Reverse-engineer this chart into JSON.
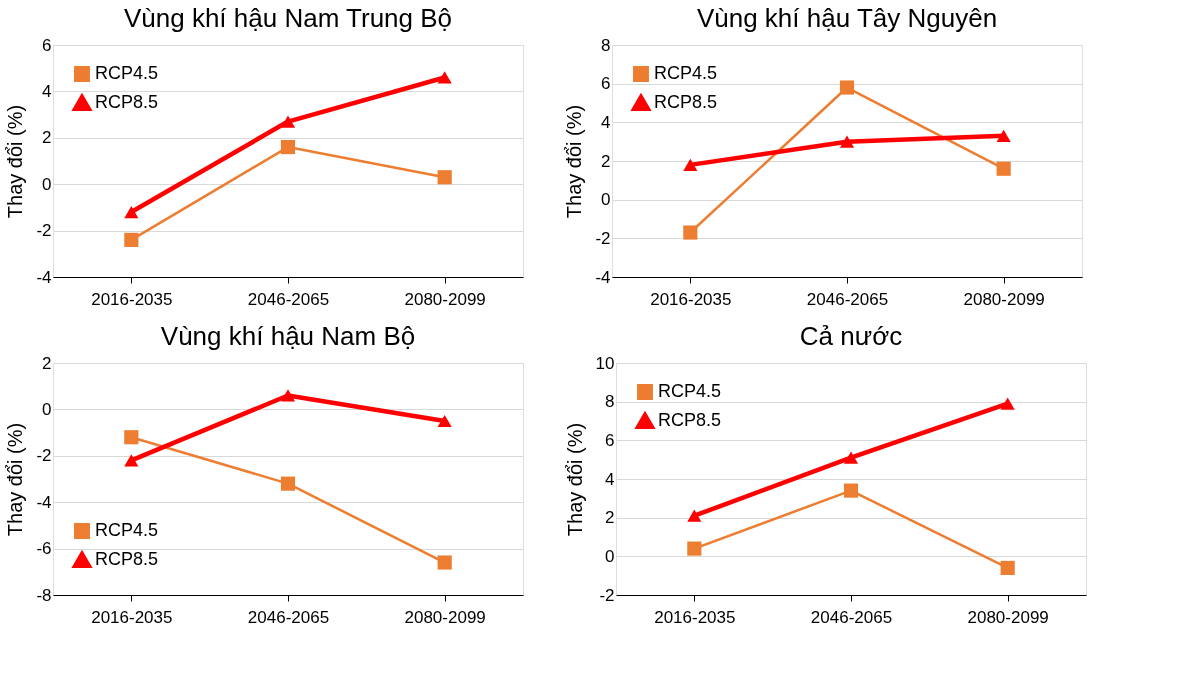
{
  "chart_data": [
    {
      "type": "line",
      "title": "Vùng khí hậu Nam Trung Bộ",
      "ylabel": "Thay đổi (%)",
      "categories": [
        "2016-2035",
        "2046-2065",
        "2080-2099"
      ],
      "series": [
        {
          "name": "RCP4.5",
          "color": "#ed7d31",
          "marker": "square",
          "values": [
            -2.4,
            1.6,
            0.3
          ]
        },
        {
          "name": "RCP8.5",
          "color": "#ff0000",
          "marker": "triangle",
          "values": [
            -1.2,
            2.7,
            4.6
          ]
        }
      ],
      "ylim": [
        -4,
        6
      ],
      "yticks": [
        -4,
        -2,
        0,
        2,
        4,
        6
      ],
      "grid": "y",
      "legend": "top left"
    },
    {
      "type": "line",
      "title": "Vùng khí hậu Tây Nguyên",
      "ylabel": "Thay đổi (%)",
      "categories": [
        "2016-2035",
        "2046-2065",
        "2080-2099"
      ],
      "series": [
        {
          "name": "RCP4.5",
          "color": "#ed7d31",
          "marker": "square",
          "values": [
            -1.7,
            5.8,
            1.6
          ]
        },
        {
          "name": "RCP8.5",
          "color": "#ff0000",
          "marker": "triangle",
          "values": [
            1.8,
            3.0,
            3.3
          ]
        }
      ],
      "ylim": [
        -4,
        8
      ],
      "yticks": [
        -4,
        -2,
        0,
        2,
        4,
        6,
        8
      ],
      "grid": "y",
      "legend": "top left"
    },
    {
      "type": "line",
      "title": "Vùng khí hậu Nam Bộ",
      "ylabel": "Thay đổi (%)",
      "categories": [
        "2016-2035",
        "2046-2065",
        "2080-2099"
      ],
      "series": [
        {
          "name": "RCP4.5",
          "color": "#ed7d31",
          "marker": "square",
          "values": [
            -1.2,
            -3.2,
            -6.6
          ]
        },
        {
          "name": "RCP8.5",
          "color": "#ff0000",
          "marker": "triangle",
          "values": [
            -2.2,
            0.6,
            -0.5
          ]
        }
      ],
      "ylim": [
        -8,
        2
      ],
      "yticks": [
        -8,
        -6,
        -4,
        -2,
        0,
        2
      ],
      "grid": "y",
      "legend": "bottom left"
    },
    {
      "type": "line",
      "title": "Cả nước",
      "ylabel": "Thay đổi (%)",
      "categories": [
        "2016-2035",
        "2046-2065",
        "2080-2099"
      ],
      "series": [
        {
          "name": "RCP4.5",
          "color": "#ed7d31",
          "marker": "square",
          "values": [
            0.4,
            3.4,
            -0.6
          ]
        },
        {
          "name": "RCP8.5",
          "color": "#ff0000",
          "marker": "triangle",
          "values": [
            2.1,
            5.1,
            7.9
          ]
        }
      ],
      "ylim": [
        -2,
        10
      ],
      "yticks": [
        -2,
        0,
        2,
        4,
        6,
        8,
        10
      ],
      "grid": "y",
      "legend": "top left"
    }
  ]
}
